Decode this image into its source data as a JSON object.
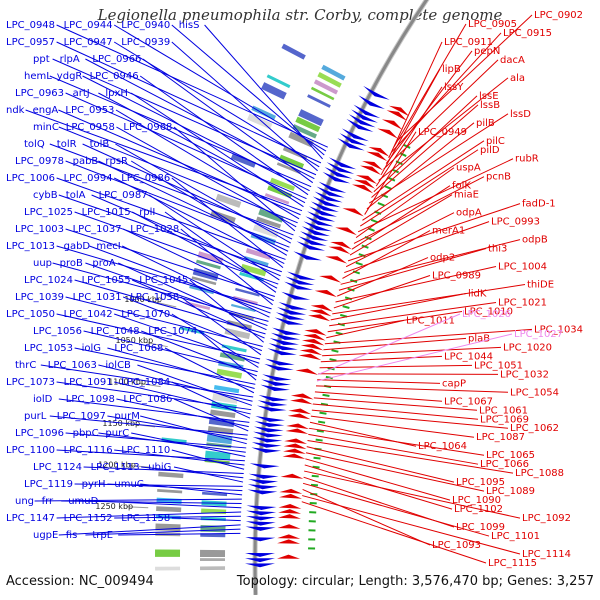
{
  "title": "Legionella pneumophila str. Corby, complete genome",
  "footer": {
    "accession": "Accession: NC_009494",
    "summary": "Topology: circular; Length: 3,576,470 bp; Genes: 3,257"
  },
  "colors": {
    "forward": "#0000e0",
    "reverse": "#e00000",
    "rna": "#ee88ee",
    "backbone": "#888888",
    "tick": "#22aa22"
  },
  "ticks": [
    {
      "label": "1000 kbp"
    },
    {
      "label": "1050 kbp"
    },
    {
      "label": "1100 kbp"
    },
    {
      "label": "1150 kbp"
    },
    {
      "label": "1200 kbp"
    },
    {
      "label": "1250 kbp"
    }
  ],
  "left_genes": [
    "LPC_0948",
    "LPC_0944",
    "LPC_0940",
    "hisS",
    "LPC_0957",
    "LPC_0947",
    "LPC_0939",
    "ppt",
    "rlpA",
    "LPC_0966",
    "hemL",
    "ydgR",
    "LPC_0946",
    "LPC_0963",
    "artJ",
    "lpxH",
    "ndk",
    "engA",
    "LPC_0953",
    "minC",
    "LPC_0958",
    "LPC_0968",
    "tolQ",
    "tolR",
    "tolB",
    "LPC_0978",
    "pabB",
    "rpsR",
    "LPC_1006",
    "LPC_0994",
    "LPC_0986",
    "cybB",
    "tolA",
    "LPC_0987",
    "LPC_1025",
    "LPC_1015",
    "rplI",
    "LPC_1003",
    "LPC_1037",
    "LPC_1028",
    "LPC_1013",
    "gabD",
    "mecI",
    "uup",
    "proB",
    "proA",
    "LPC_1024",
    "LPC_1055",
    "LPC_1045",
    "LPC_1039",
    "LPC_1031",
    "LPC_1058",
    "LPC_1050",
    "LPC_1042",
    "LPC_1070",
    "LPC_1056",
    "LPC_1048",
    "LPC_1074",
    "LPC_1053",
    "iolG",
    "LPC_1068",
    "thrC",
    "LPC_1063",
    "iolCB",
    "LPC_1073",
    "LPC_1091",
    "LPC_1084",
    "iolD",
    "LPC_1098",
    "LPC_1086",
    "purL",
    "LPC_1097",
    "purM",
    "LPC_1096",
    "pbpC",
    "purC",
    "LPC_1100",
    "LPC_1116",
    "LPC_1110",
    "LPC_1124",
    "LPC_1113",
    "ubiG",
    "LPC_1119",
    "pyrH",
    "umuC",
    "ung",
    "frr",
    "umuD",
    "LPC_1147",
    "LPC_1152",
    "LPC_1158",
    "ugpE",
    "fis",
    "trpE"
  ],
  "right_genes": [
    "LPC_0902",
    "LPC_0905",
    "LPC_0915",
    "LPC_0911",
    "pepN",
    "dacA",
    "lipB",
    "ala",
    "lssY",
    "lssE",
    "lssB",
    "lssD",
    "pilB",
    "LPC_0949",
    "pilC",
    "pilD",
    "rubR",
    "uspA",
    "pcnB",
    "folK",
    "miaE",
    "fadD-1",
    "odpA",
    "LPC_0993",
    "merA1",
    "odpB",
    "thi3",
    "odp2",
    "LPC_1004",
    "LPC_0989",
    "thiDE",
    "lidK",
    "LPC_1021",
    "LPC_1010",
    "LPC_1011",
    "LPC_1034",
    "plaB",
    "LPC_1020",
    "LPC_1044",
    "LPC_1051",
    "LPC_1032",
    "capP",
    "LPC_1054",
    "LPC_1067",
    "LPC_1061",
    "LPC_1069",
    "LPC_1062",
    "LPC_1087",
    "LPC_1064",
    "LPC_1065",
    "LPC_1066",
    "LPC_1088",
    "LPC_1095",
    "LPC_1089",
    "LPC_1090",
    "LPC_1102",
    "LPC_1092",
    "LPC_1099",
    "LPC_1101",
    "LPC_1093",
    "LPC_1114",
    "LPC_1115"
  ],
  "rna_genes": [
    "LPC_1026",
    "LPC_1027"
  ]
}
